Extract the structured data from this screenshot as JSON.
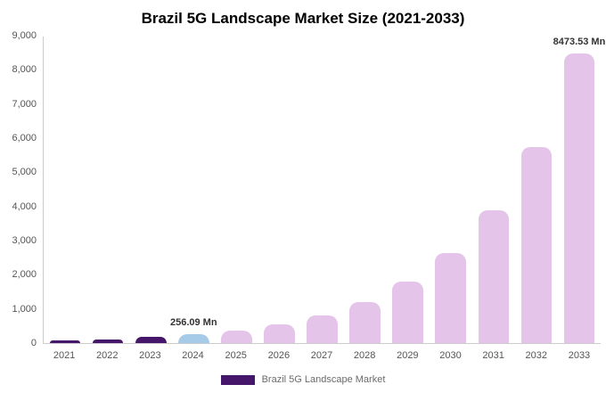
{
  "chart_data": {
    "type": "bar",
    "title": "Brazil 5G Landscape Market Size (2021-2033)",
    "xlabel": "",
    "ylabel": "",
    "unit": "Mn",
    "categories": [
      "2021",
      "2022",
      "2023",
      "2024",
      "2025",
      "2026",
      "2027",
      "2028",
      "2029",
      "2030",
      "2031",
      "2032",
      "2033"
    ],
    "values": [
      79.8,
      117.7,
      173.6,
      256.09,
      377.8,
      557.2,
      821.9,
      1212.3,
      1788.1,
      2637.4,
      3890.1,
      5737.8,
      8473.53
    ],
    "ylim": [
      0,
      9000
    ],
    "y_tick_step": 1000,
    "y_tick_labels": [
      "0",
      "1,000",
      "2,000",
      "3,000",
      "4,000",
      "5,000",
      "6,000",
      "7,000",
      "8,000",
      "9,000"
    ],
    "grid": false,
    "legend": {
      "label": "Brazil 5G Landscape Market",
      "position": "bottom"
    },
    "bar_colors": [
      "dark",
      "dark",
      "dark",
      "blue",
      "pink",
      "pink",
      "pink",
      "pink",
      "pink",
      "pink",
      "pink",
      "pink",
      "pink"
    ],
    "colors": {
      "dark": "#46166b",
      "blue": "#a6cbe9",
      "pink": "#e5c4e9"
    },
    "annotations": [
      {
        "category": "2024",
        "text": "256.09 Mn"
      },
      {
        "category": "2033",
        "text": "8473.53 Mn"
      }
    ]
  }
}
